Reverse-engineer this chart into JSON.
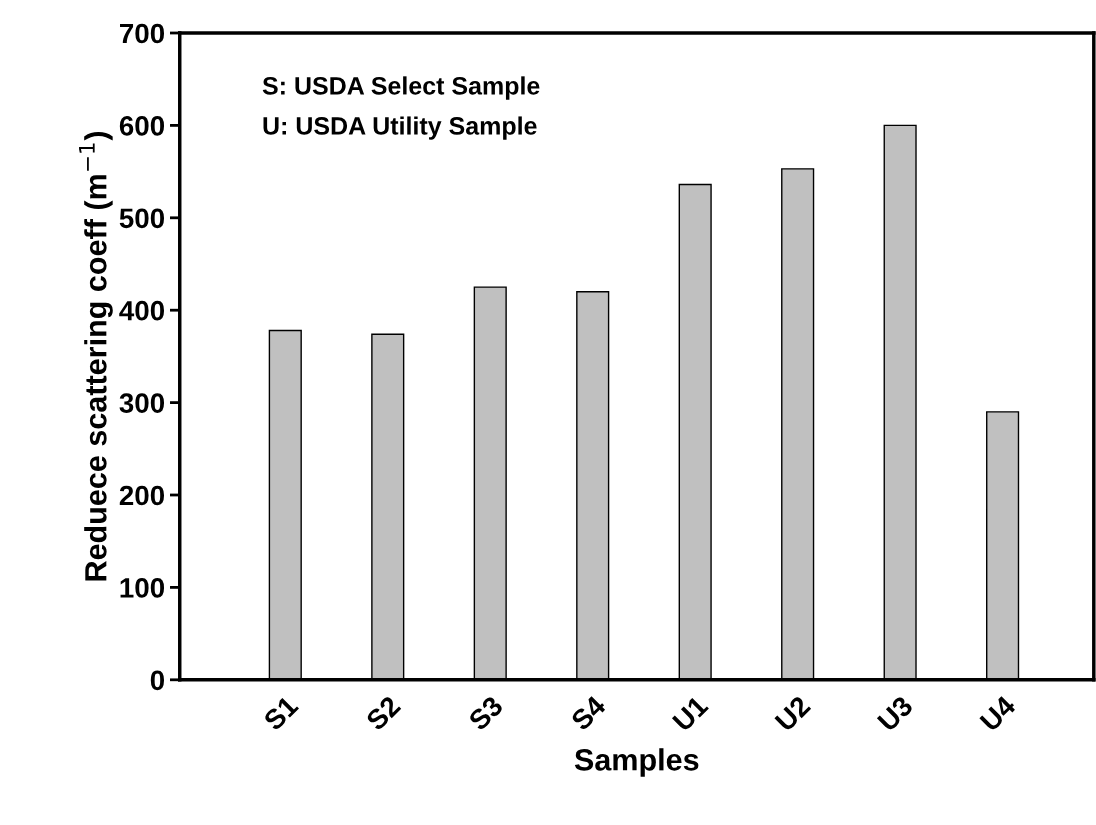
{
  "chart_data": {
    "type": "bar",
    "xlabel": "Samples",
    "ylabel": "Reduece scattering coeff (m$^{−1}$)",
    "categories": [
      "S1",
      "S2",
      "S3",
      "S4",
      "U1",
      "U2",
      "U3",
      "U4"
    ],
    "values": [
      378,
      374,
      425,
      420,
      536,
      553,
      600,
      290
    ],
    "color": "#c0c0c0",
    "ylim": [
      0,
      700
    ],
    "yticks": [
      0,
      100,
      200,
      300,
      400,
      500,
      600,
      700
    ],
    "annotations": [
      "S: USDA Select Sample",
      "U: USDA Utility Sample"
    ],
    "grid": false,
    "legend": false
  }
}
